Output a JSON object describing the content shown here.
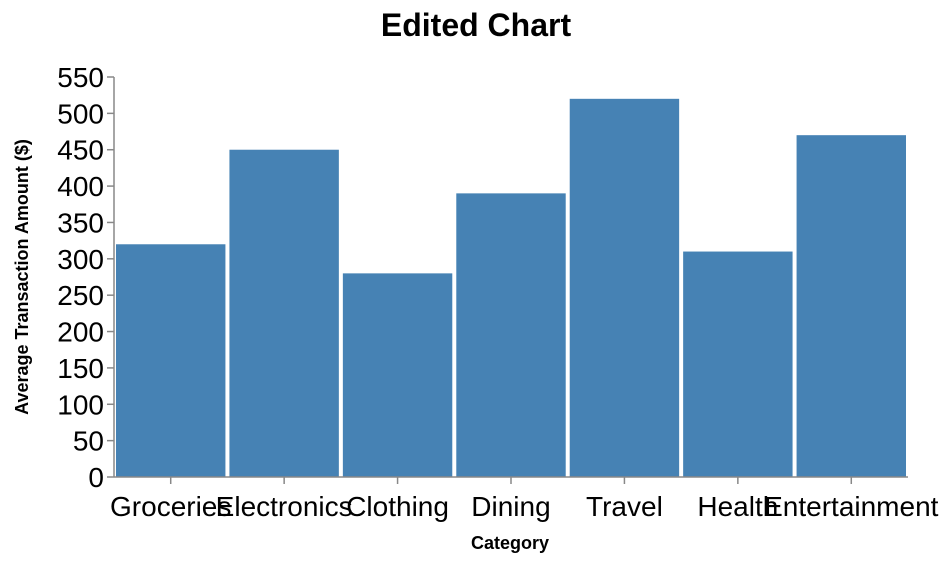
{
  "colors": {
    "bar": "#4682b4",
    "axis": "#888888",
    "background": "#ffffff"
  },
  "chart_data": {
    "type": "bar",
    "title": "Edited Chart",
    "xlabel": "Category",
    "ylabel": "Average Transaction Amount ($)",
    "categories": [
      "Groceries",
      "Electronics",
      "Clothing",
      "Dining",
      "Travel",
      "Health",
      "Entertainment"
    ],
    "values": [
      320,
      450,
      280,
      390,
      520,
      310,
      470
    ],
    "ylim": [
      0,
      550
    ],
    "yticks": [
      0,
      50,
      100,
      150,
      200,
      250,
      300,
      350,
      400,
      450,
      500,
      550
    ],
    "grid": false,
    "legend": "none"
  }
}
